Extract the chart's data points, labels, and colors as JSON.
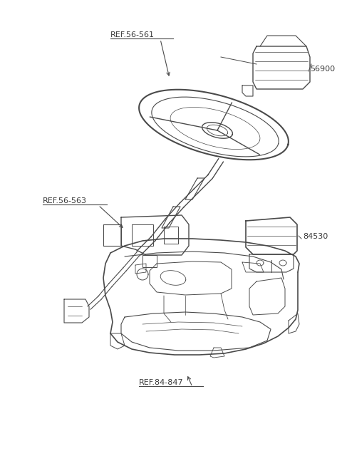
{
  "bg_color": "#ffffff",
  "line_color": "#4a4a4a",
  "label_color": "#3a3a3a",
  "fig_width": 4.8,
  "fig_height": 6.33,
  "dpi": 100,
  "labels": {
    "ref1": "REF.56-561",
    "ref2": "REF.56-563",
    "ref3": "REF.84-847",
    "part1": "56900",
    "part2": "84530"
  }
}
